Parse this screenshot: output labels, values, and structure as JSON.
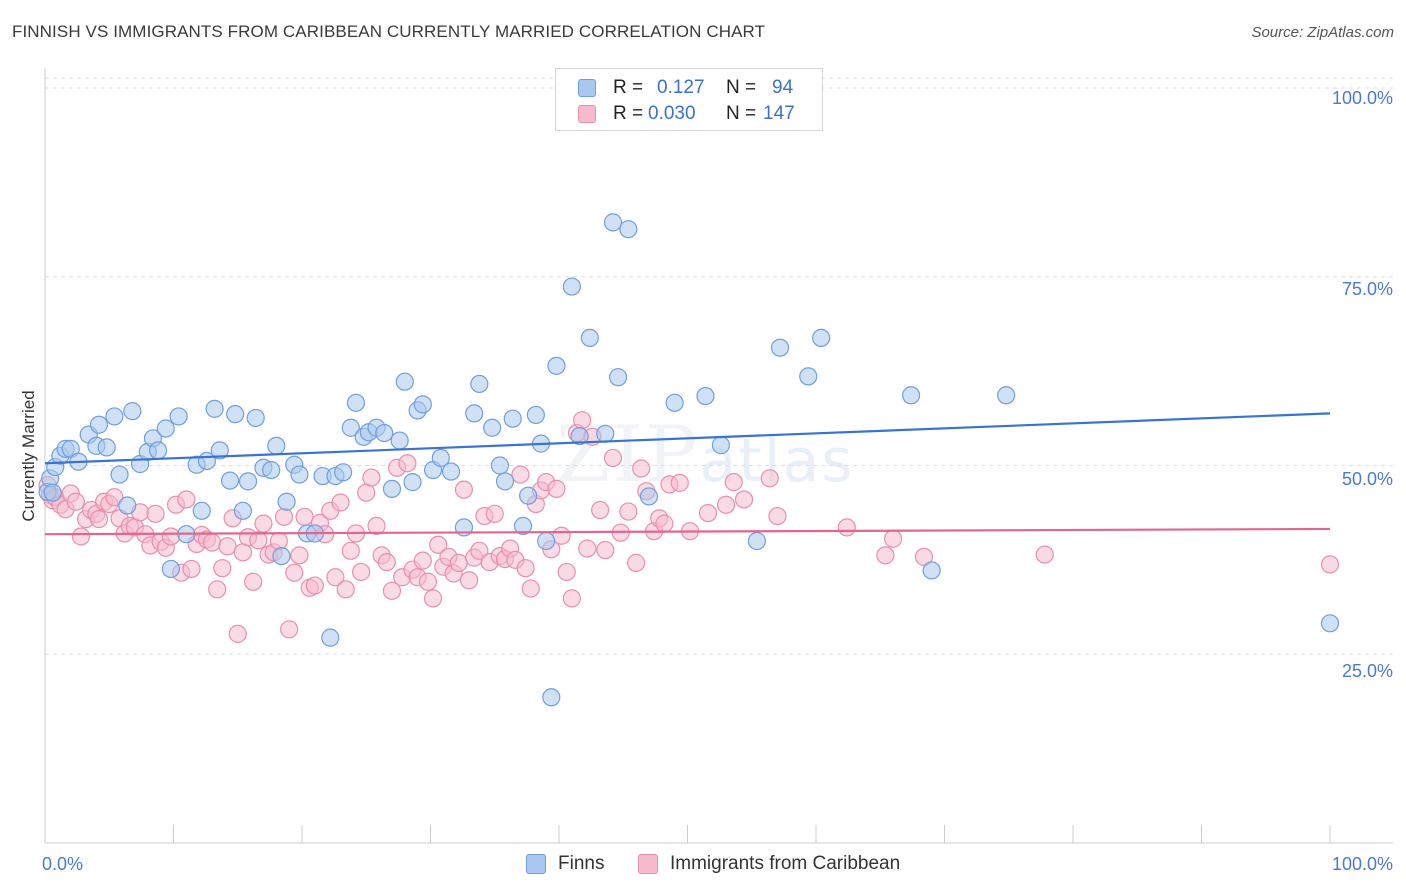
{
  "header": {
    "title": "FINNISH VS IMMIGRANTS FROM CARIBBEAN CURRENTLY MARRIED CORRELATION CHART",
    "source": "Source: ZipAtlas.com"
  },
  "watermark": {
    "zip": "ZIP",
    "atlas": "atlas"
  },
  "legend": {
    "rows": [
      {
        "r_label": "R =",
        "r_value": "0.127",
        "n_label": "N =",
        "n_value": "94"
      },
      {
        "r_label": "R =",
        "r_value": "0.030",
        "n_label": "N =",
        "n_value": "147"
      }
    ]
  },
  "colors": {
    "finns_fill": "#aac8ef",
    "finns_stroke": "#6f9fdc",
    "finns_line": "#3a74d0",
    "carib_fill": "#f6bccd",
    "carib_stroke": "#e98fac",
    "carib_line": "#e2668e",
    "grid": "#dddddd",
    "axis_text": "#4a7bc8"
  },
  "chart_data": {
    "type": "scatter",
    "title": "FINNISH VS IMMIGRANTS FROM CARIBBEAN CURRENTLY MARRIED CORRELATION CHART",
    "xlabel": "",
    "ylabel": "Currently Married",
    "xlim": [
      0,
      100
    ],
    "ylim": [
      0,
      104
    ],
    "x_tick_labels": [
      "0.0%",
      "100.0%"
    ],
    "y_ticks": [
      25,
      50,
      75,
      100
    ],
    "y_tick_labels": [
      "25.0%",
      "50.0%",
      "75.0%",
      "100.0%"
    ],
    "grid": true,
    "legend_position": "bottom",
    "series": [
      {
        "name": "Finns",
        "R": 0.127,
        "N": 94,
        "trend": {
          "x": [
            0,
            100
          ],
          "y": [
            50.3,
            56.9
          ]
        },
        "points": [
          [
            0.2,
            46.5
          ],
          [
            0.4,
            48.3
          ],
          [
            0.6,
            46.4
          ],
          [
            0.8,
            49.8
          ],
          [
            1.2,
            51.3
          ],
          [
            1.6,
            52.2
          ],
          [
            2.0,
            52.2
          ],
          [
            2.6,
            50.5
          ],
          [
            3.4,
            54.1
          ],
          [
            4.0,
            52.6
          ],
          [
            4.2,
            55.4
          ],
          [
            4.8,
            52.4
          ],
          [
            5.4,
            56.5
          ],
          [
            5.8,
            48.8
          ],
          [
            6.4,
            44.7
          ],
          [
            6.8,
            57.2
          ],
          [
            7.4,
            50.2
          ],
          [
            8.0,
            51.8
          ],
          [
            8.4,
            53.6
          ],
          [
            8.8,
            52.0
          ],
          [
            9.4,
            54.9
          ],
          [
            9.8,
            36.3
          ],
          [
            10.4,
            56.5
          ],
          [
            11.0,
            40.9
          ],
          [
            11.8,
            50.1
          ],
          [
            12.2,
            44.0
          ],
          [
            12.6,
            50.6
          ],
          [
            13.2,
            57.5
          ],
          [
            13.6,
            52.0
          ],
          [
            14.4,
            48.0
          ],
          [
            14.8,
            56.8
          ],
          [
            15.4,
            44.0
          ],
          [
            15.8,
            47.9
          ],
          [
            16.4,
            56.3
          ],
          [
            17.0,
            49.7
          ],
          [
            17.6,
            49.4
          ],
          [
            18.0,
            52.6
          ],
          [
            18.4,
            38.0
          ],
          [
            18.8,
            45.2
          ],
          [
            19.4,
            50.1
          ],
          [
            19.8,
            48.8
          ],
          [
            20.4,
            41.0
          ],
          [
            21.0,
            41.0
          ],
          [
            21.6,
            48.6
          ],
          [
            22.2,
            27.2
          ],
          [
            22.6,
            48.6
          ],
          [
            23.2,
            49.1
          ],
          [
            23.8,
            55.0
          ],
          [
            24.2,
            58.3
          ],
          [
            24.8,
            53.8
          ],
          [
            25.2,
            54.4
          ],
          [
            25.8,
            55.0
          ],
          [
            26.4,
            54.3
          ],
          [
            27.0,
            46.9
          ],
          [
            27.6,
            53.3
          ],
          [
            28.0,
            61.1
          ],
          [
            28.6,
            47.8
          ],
          [
            29.0,
            57.3
          ],
          [
            29.4,
            58.1
          ],
          [
            30.2,
            49.4
          ],
          [
            30.8,
            51.0
          ],
          [
            31.6,
            49.2
          ],
          [
            32.6,
            41.8
          ],
          [
            33.4,
            56.9
          ],
          [
            33.8,
            60.8
          ],
          [
            34.8,
            55.0
          ],
          [
            35.4,
            50.0
          ],
          [
            35.8,
            47.9
          ],
          [
            36.4,
            56.2
          ],
          [
            37.2,
            42.0
          ],
          [
            37.6,
            46.0
          ],
          [
            38.2,
            56.7
          ],
          [
            38.6,
            52.9
          ],
          [
            39.0,
            40.0
          ],
          [
            39.4,
            19.3
          ],
          [
            39.8,
            63.2
          ],
          [
            41.0,
            73.7
          ],
          [
            41.6,
            53.9
          ],
          [
            42.4,
            66.9
          ],
          [
            43.6,
            54.2
          ],
          [
            44.2,
            82.2
          ],
          [
            44.6,
            61.7
          ],
          [
            45.4,
            81.3
          ],
          [
            47.0,
            45.9
          ],
          [
            49.0,
            58.3
          ],
          [
            51.4,
            59.2
          ],
          [
            52.6,
            52.7
          ],
          [
            55.4,
            40.0
          ],
          [
            57.2,
            65.6
          ],
          [
            59.4,
            61.8
          ],
          [
            60.4,
            66.9
          ],
          [
            67.4,
            59.3
          ],
          [
            69.0,
            36.1
          ],
          [
            74.8,
            59.3
          ],
          [
            100.0,
            29.1
          ]
        ]
      },
      {
        "name": "Immigrants from Caribbean",
        "R": 0.03,
        "N": 147,
        "trend": {
          "x": [
            0,
            100
          ],
          "y": [
            40.9,
            41.6
          ]
        },
        "points": [
          [
            0.2,
            47.4
          ],
          [
            0.4,
            46.1
          ],
          [
            0.6,
            45.4
          ],
          [
            0.8,
            45.8
          ],
          [
            1.2,
            44.8
          ],
          [
            1.6,
            44.2
          ],
          [
            2.0,
            46.3
          ],
          [
            2.4,
            45.2
          ],
          [
            2.8,
            40.6
          ],
          [
            3.2,
            42.9
          ],
          [
            3.6,
            44.1
          ],
          [
            4.0,
            43.6
          ],
          [
            4.2,
            42.9
          ],
          [
            4.6,
            45.2
          ],
          [
            5.0,
            44.9
          ],
          [
            5.4,
            45.8
          ],
          [
            5.8,
            43.0
          ],
          [
            6.2,
            41.0
          ],
          [
            6.6,
            42.0
          ],
          [
            7.0,
            41.8
          ],
          [
            7.4,
            43.8
          ],
          [
            7.8,
            40.9
          ],
          [
            8.2,
            39.4
          ],
          [
            8.6,
            43.6
          ],
          [
            9.0,
            39.9
          ],
          [
            9.4,
            39.1
          ],
          [
            9.8,
            40.6
          ],
          [
            10.2,
            44.8
          ],
          [
            10.6,
            35.8
          ],
          [
            11.0,
            45.5
          ],
          [
            11.4,
            36.3
          ],
          [
            11.8,
            39.6
          ],
          [
            12.2,
            40.8
          ],
          [
            12.6,
            40.2
          ],
          [
            13.0,
            39.8
          ],
          [
            13.4,
            33.6
          ],
          [
            13.8,
            36.4
          ],
          [
            14.2,
            39.3
          ],
          [
            14.6,
            43.0
          ],
          [
            15.0,
            27.7
          ],
          [
            15.4,
            38.5
          ],
          [
            15.8,
            40.5
          ],
          [
            16.2,
            34.6
          ],
          [
            16.6,
            40.1
          ],
          [
            17.0,
            42.3
          ],
          [
            17.4,
            38.2
          ],
          [
            17.8,
            38.5
          ],
          [
            18.2,
            40.0
          ],
          [
            18.6,
            43.2
          ],
          [
            19.0,
            28.3
          ],
          [
            19.4,
            35.8
          ],
          [
            19.8,
            38.1
          ],
          [
            20.2,
            43.2
          ],
          [
            20.6,
            33.8
          ],
          [
            21.0,
            34.1
          ],
          [
            21.4,
            42.4
          ],
          [
            21.8,
            40.9
          ],
          [
            22.2,
            44.0
          ],
          [
            22.6,
            35.2
          ],
          [
            23.0,
            45.1
          ],
          [
            23.4,
            33.6
          ],
          [
            23.8,
            38.7
          ],
          [
            24.2,
            41.0
          ],
          [
            24.6,
            35.9
          ],
          [
            25.0,
            46.4
          ],
          [
            25.4,
            48.4
          ],
          [
            25.8,
            42.0
          ],
          [
            26.2,
            38.1
          ],
          [
            26.6,
            37.2
          ],
          [
            27.0,
            33.4
          ],
          [
            27.4,
            49.7
          ],
          [
            27.8,
            35.2
          ],
          [
            28.2,
            50.3
          ],
          [
            28.6,
            36.2
          ],
          [
            29.0,
            35.2
          ],
          [
            29.4,
            37.4
          ],
          [
            29.8,
            34.6
          ],
          [
            30.2,
            32.4
          ],
          [
            30.6,
            39.5
          ],
          [
            31.0,
            36.6
          ],
          [
            31.4,
            37.9
          ],
          [
            31.8,
            35.7
          ],
          [
            32.2,
            37.1
          ],
          [
            32.6,
            46.8
          ],
          [
            33.0,
            34.8
          ],
          [
            33.4,
            37.8
          ],
          [
            33.8,
            38.7
          ],
          [
            34.2,
            43.3
          ],
          [
            34.6,
            37.2
          ],
          [
            35.0,
            43.6
          ],
          [
            35.4,
            38.0
          ],
          [
            35.8,
            37.6
          ],
          [
            36.2,
            39.0
          ],
          [
            36.6,
            37.5
          ],
          [
            37.0,
            48.8
          ],
          [
            37.4,
            36.4
          ],
          [
            37.8,
            33.7
          ],
          [
            38.2,
            44.9
          ],
          [
            38.6,
            46.7
          ],
          [
            39.0,
            47.8
          ],
          [
            39.4,
            38.9
          ],
          [
            39.8,
            46.9
          ],
          [
            40.2,
            40.7
          ],
          [
            40.6,
            35.9
          ],
          [
            41.0,
            32.4
          ],
          [
            41.4,
            54.3
          ],
          [
            41.8,
            56.0
          ],
          [
            42.2,
            39.0
          ],
          [
            42.6,
            53.8
          ],
          [
            43.2,
            44.1
          ],
          [
            43.6,
            38.8
          ],
          [
            44.2,
            51.0
          ],
          [
            44.8,
            41.1
          ],
          [
            45.4,
            43.9
          ],
          [
            46.0,
            37.1
          ],
          [
            46.4,
            49.6
          ],
          [
            46.8,
            46.6
          ],
          [
            47.4,
            41.3
          ],
          [
            47.8,
            43.0
          ],
          [
            48.2,
            42.3
          ],
          [
            48.6,
            47.5
          ],
          [
            49.4,
            47.7
          ],
          [
            50.2,
            41.3
          ],
          [
            51.6,
            43.7
          ],
          [
            53.0,
            44.8
          ],
          [
            53.6,
            47.8
          ],
          [
            54.4,
            45.5
          ],
          [
            56.4,
            48.3
          ],
          [
            57.0,
            43.3
          ],
          [
            62.4,
            41.8
          ],
          [
            65.4,
            38.1
          ],
          [
            66.0,
            40.3
          ],
          [
            68.4,
            37.9
          ],
          [
            77.8,
            38.2
          ],
          [
            100.0,
            36.9
          ]
        ]
      }
    ]
  },
  "axes": {
    "y_title": "Currently Married",
    "y_tick_labels": [
      "100.0%",
      "75.0%",
      "50.0%",
      "25.0%"
    ],
    "x_left_label": "0.0%",
    "x_right_label": "100.0%"
  },
  "bottom_legend": {
    "items": [
      {
        "label": "Finns"
      },
      {
        "label": "Immigrants from Caribbean"
      }
    ]
  }
}
